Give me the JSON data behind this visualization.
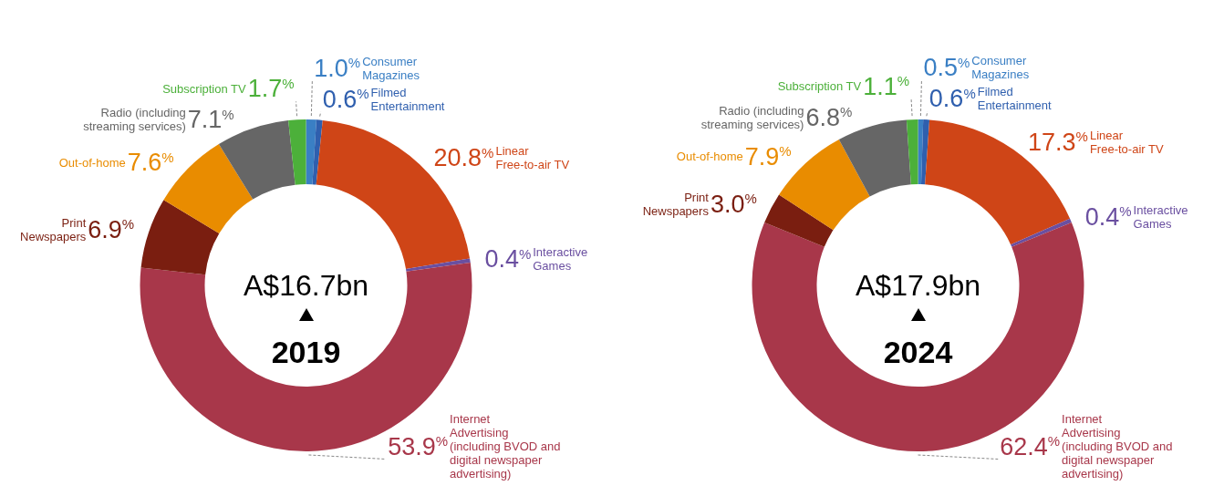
{
  "chart_data": [
    {
      "type": "donut",
      "title": "2019",
      "subtitle": "A$16.7bn",
      "categories": [
        "Consumer Magazines",
        "Filmed Entertainment",
        "Linear Free-to-air TV",
        "Interactive Games",
        "Internet Advertising (including BVOD and digital newspaper advertising)",
        "Print Newspapers",
        "Out-of-home",
        "Radio (including streaming services)",
        "Subscription TV"
      ],
      "values": [
        1.0,
        0.6,
        20.8,
        0.4,
        53.9,
        6.9,
        7.6,
        7.1,
        1.7
      ],
      "data_labels": true,
      "value_labels": [
        "1.0%",
        "0.6%",
        "20.8%",
        "0.4%",
        "53.9%",
        "6.9%",
        "7.6%",
        "7.1%",
        "1.7%"
      ],
      "colors": [
        "#3a7fc4",
        "#2f5fae",
        "#cf4517",
        "#6a4fa0",
        "#a8374a",
        "#7a1e10",
        "#e98c00",
        "#666666",
        "#4cb03a"
      ]
    },
    {
      "type": "donut",
      "title": "2024",
      "subtitle": "A$17.9bn",
      "categories": [
        "Consumer Magazines",
        "Filmed Entertainment",
        "Linear Free-to-air TV",
        "Interactive Games",
        "Internet Advertising (including BVOD and digital newspaper advertising)",
        "Print Newspapers",
        "Out-of-home",
        "Radio (including streaming services)",
        "Subscription TV"
      ],
      "values": [
        0.5,
        0.6,
        17.3,
        0.4,
        62.4,
        3.0,
        7.9,
        6.8,
        1.1
      ],
      "data_labels": true,
      "value_labels": [
        "0.5%",
        "0.6%",
        "17.3%",
        "0.4%",
        "62.4%",
        "3.0%",
        "7.9%",
        "6.8%",
        "1.1%"
      ],
      "colors": [
        "#3a7fc4",
        "#2f5fae",
        "#cf4517",
        "#6a4fa0",
        "#a8374a",
        "#7a1e10",
        "#e98c00",
        "#666666",
        "#4cb03a"
      ]
    }
  ]
}
